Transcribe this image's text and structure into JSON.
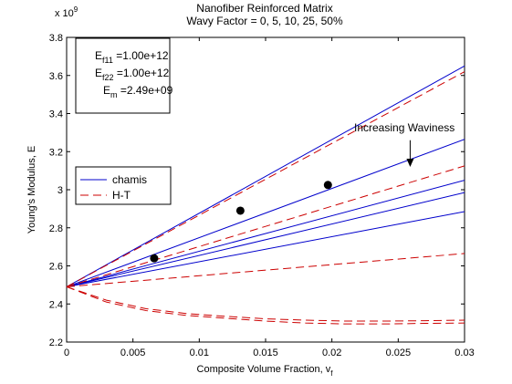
{
  "chart_data": {
    "type": "line",
    "title": "Nanofiber Reinforced Matrix",
    "subtitle": "Wavy Factor = 0, 5, 10, 25, 50%",
    "xlabel": "Composite Volume Fraction, v",
    "xlabel_sub": "f",
    "ylabel": "Young's Modulus, E",
    "y_exponent_prefix": "x 10",
    "y_exponent": "9",
    "xlim": [
      0,
      0.03
    ],
    "ylim": [
      2.2,
      3.8
    ],
    "x_ticks": [
      0,
      0.005,
      0.01,
      0.015,
      0.02,
      0.025,
      0.03
    ],
    "x_tick_labels": [
      "0",
      "0.005",
      "0.01",
      "0.015",
      "0.02",
      "0.025",
      "0.03"
    ],
    "y_ticks": [
      2.2,
      2.4,
      2.6,
      2.8,
      3.0,
      3.2,
      3.4,
      3.6,
      3.8
    ],
    "y_tick_labels": [
      "2.2",
      "2.4",
      "2.6",
      "2.8",
      "3",
      "3.2",
      "3.4",
      "3.6",
      "3.8"
    ],
    "grid": false,
    "legend_position": "middle-left",
    "x": [
      0,
      0.03
    ],
    "series": [
      {
        "name": "chamis",
        "color": "#0000cc",
        "dash": "solid",
        "curves": [
          [
            2.49,
            3.65
          ],
          [
            2.49,
            3.265
          ],
          [
            2.49,
            3.05
          ],
          [
            2.49,
            2.985
          ],
          [
            2.49,
            2.885
          ]
        ]
      },
      {
        "name": "H-T",
        "color": "#cc0000",
        "dash": "dashed",
        "curves": [
          [
            2.49,
            3.62
          ],
          [
            2.49,
            3.125
          ],
          [
            2.49,
            2.665
          ]
        ],
        "curved": [
          {
            "x": [
              0,
              0.003,
              0.006,
              0.009,
              0.012,
              0.015,
              0.018,
              0.021,
              0.024,
              0.027,
              0.03
            ],
            "y": [
              2.49,
              2.41,
              2.365,
              2.34,
              2.325,
              2.31,
              2.3,
              2.295,
              2.295,
              2.298,
              2.3
            ]
          },
          {
            "x": [
              0,
              0.003,
              0.006,
              0.009,
              0.012,
              0.015,
              0.018,
              0.021,
              0.024,
              0.027,
              0.03
            ],
            "y": [
              2.49,
              2.42,
              2.375,
              2.35,
              2.335,
              2.322,
              2.315,
              2.31,
              2.31,
              2.312,
              2.315
            ]
          }
        ]
      }
    ],
    "markers": {
      "color": "#000000",
      "points": [
        {
          "x": 0.0066,
          "y": 2.64
        },
        {
          "x": 0.0131,
          "y": 2.89
        },
        {
          "x": 0.0197,
          "y": 3.025
        }
      ]
    },
    "info_box": {
      "lines": [
        {
          "label": "E",
          "sub": "f11",
          "value": " =1.00e+12"
        },
        {
          "label": "E",
          "sub": "f22",
          "value": " =1.00e+12"
        },
        {
          "label": "E",
          "sub": "m",
          "value": " =2.49e+09"
        }
      ]
    },
    "annotation": {
      "text": "Increasing Waviness",
      "arrow_from": {
        "x": 0.0259,
        "y": 3.26
      },
      "arrow_to": {
        "x": 0.0259,
        "y": 3.12
      }
    }
  }
}
